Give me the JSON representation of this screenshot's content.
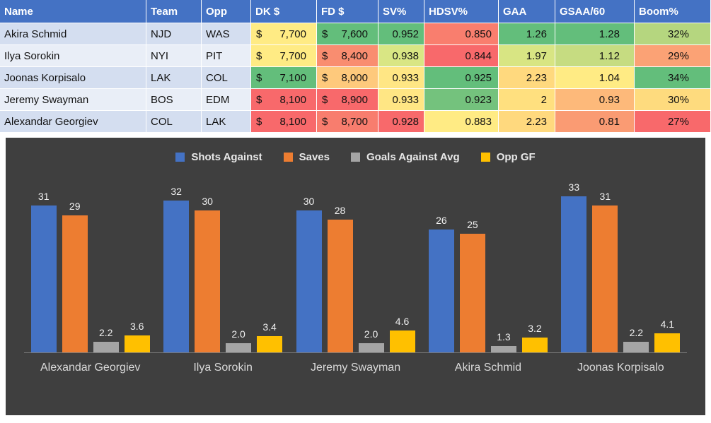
{
  "table": {
    "currency_symbol": "$",
    "headers": [
      "Name",
      "Team",
      "Opp",
      "DK $",
      "FD $",
      "SV%",
      "HDSV%",
      "GAA",
      "GSAA/60",
      "Boom%"
    ],
    "rows": [
      {
        "cells": [
          "Akira Schmid",
          "NJD",
          "WAS",
          "7,700",
          "7,600",
          "0.952",
          "0.850",
          "1.26",
          "1.28",
          "32%"
        ],
        "colors": [
          "#D4DEF0",
          "#D4DEF0",
          "#D4DEF0",
          "#FFEB84",
          "#63BE7B",
          "#63BE7B",
          "#F97E6E",
          "#63BE7B",
          "#63BE7B",
          "#B5D67F"
        ]
      },
      {
        "cells": [
          "Ilya Sorokin",
          "NYI",
          "PIT",
          "7,700",
          "8,400",
          "0.938",
          "0.844",
          "1.97",
          "1.12",
          "29%"
        ],
        "colors": [
          "#E9EEF7",
          "#E9EEF7",
          "#E9EEF7",
          "#FFEB84",
          "#F98D70",
          "#D9E684",
          "#F8696B",
          "#D8E583",
          "#C6DC81",
          "#FBA275"
        ]
      },
      {
        "cells": [
          "Joonas Korpisalo",
          "LAK",
          "COL",
          "7,100",
          "8,000",
          "0.933",
          "0.925",
          "2.23",
          "1.04",
          "34%"
        ],
        "colors": [
          "#D4DEF0",
          "#D4DEF0",
          "#D4DEF0",
          "#63BE7B",
          "#FEC97C",
          "#FFE684",
          "#63BE7B",
          "#FFD97E",
          "#FFEB84",
          "#63BE7B"
        ]
      },
      {
        "cells": [
          "Jeremy Swayman",
          "BOS",
          "EDM",
          "8,100",
          "8,900",
          "0.933",
          "0.923",
          "2",
          "0.93",
          "30%"
        ],
        "colors": [
          "#E9EEF7",
          "#E9EEF7",
          "#E9EEF7",
          "#F8696B",
          "#F8696B",
          "#FFE684",
          "#74C27D",
          "#FFE07F",
          "#FDB97A",
          "#FEDB7E"
        ]
      },
      {
        "cells": [
          "Alexandar Georgiev",
          "COL",
          "LAK",
          "8,100",
          "8,700",
          "0.928",
          "0.883",
          "2.23",
          "0.81",
          "27%"
        ],
        "colors": [
          "#D4DEF0",
          "#D4DEF0",
          "#D4DEF0",
          "#F8696B",
          "#F87D6E",
          "#F8696B",
          "#FFEB84",
          "#FFD97E",
          "#FA9B73",
          "#F8696B"
        ]
      }
    ]
  },
  "chart_data": {
    "type": "bar",
    "categories": [
      "Alexandar Georgiev",
      "Ilya Sorokin",
      "Jeremy Swayman",
      "Akira Schmid",
      "Joonas Korpisalo"
    ],
    "series": [
      {
        "name": "Shots Against",
        "color": "#4472C4",
        "values": [
          31,
          32,
          30,
          26,
          33
        ],
        "labels": [
          "31",
          "32",
          "30",
          "26",
          "33"
        ]
      },
      {
        "name": "Saves",
        "color": "#ED7D31",
        "values": [
          29,
          30,
          28,
          25,
          31
        ],
        "labels": [
          "29",
          "30",
          "28",
          "25",
          "31"
        ]
      },
      {
        "name": "Goals Against Avg",
        "color": "#A5A5A5",
        "values": [
          2.2,
          2.0,
          2.0,
          1.3,
          2.2
        ],
        "labels": [
          "2.2",
          "2.0",
          "2.0",
          "1.3",
          "2.2"
        ]
      },
      {
        "name": "Opp GF",
        "color": "#FFC000",
        "values": [
          3.6,
          3.4,
          4.6,
          3.2,
          4.1
        ],
        "labels": [
          "3.6",
          "3.4",
          "4.6",
          "3.2",
          "4.1"
        ]
      }
    ],
    "title": "",
    "xlabel": "",
    "ylabel": "",
    "ylim": [
      0,
      34
    ],
    "grid": false,
    "legend_position": "top",
    "background": "#3F3F3F"
  }
}
